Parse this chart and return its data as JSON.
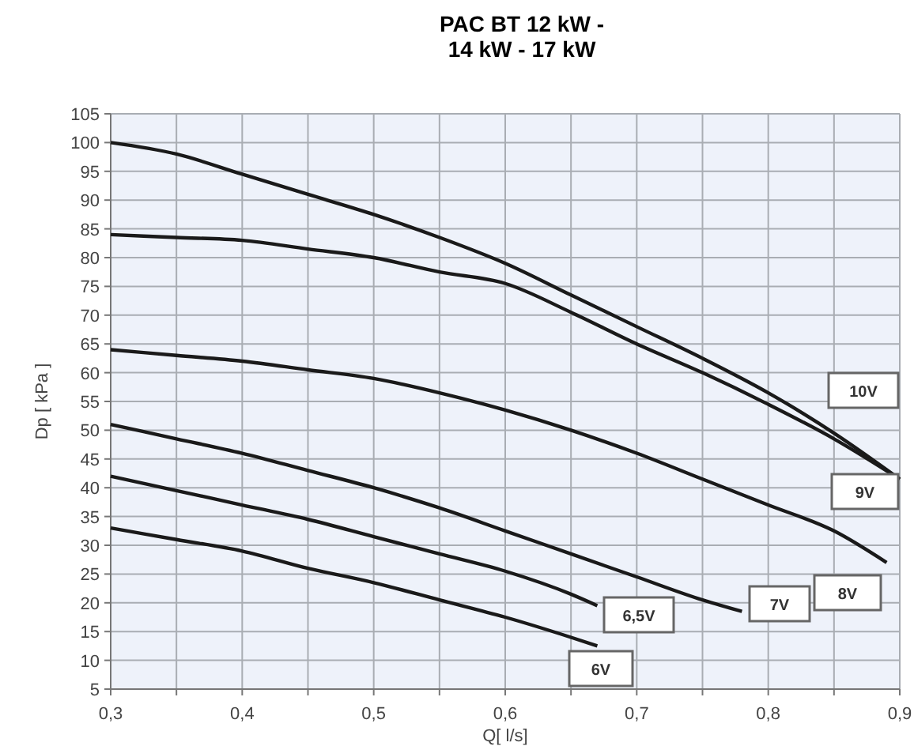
{
  "chart_data": {
    "type": "line",
    "title": "PAC BT 12 kW - 14 kW - 17 kW",
    "xlabel": "Q[ l/s]",
    "ylabel": "Dp [ kPa ]",
    "xlim": [
      0.3,
      0.9
    ],
    "xticks": [
      {
        "value": 0.3,
        "label": "0,3"
      },
      {
        "value": 0.35,
        "label": null
      },
      {
        "value": 0.4,
        "label": "0,4"
      },
      {
        "value": 0.45,
        "label": null
      },
      {
        "value": 0.5,
        "label": "0,5"
      },
      {
        "value": 0.55,
        "label": null
      },
      {
        "value": 0.6,
        "label": "0,6"
      },
      {
        "value": 0.65,
        "label": null
      },
      {
        "value": 0.7,
        "label": "0,7"
      },
      {
        "value": 0.75,
        "label": null
      },
      {
        "value": 0.8,
        "label": "0,8"
      },
      {
        "value": 0.85,
        "label": null
      },
      {
        "value": 0.9,
        "label": "0,9"
      }
    ],
    "ylim": [
      5,
      105
    ],
    "yticks": [
      5,
      10,
      15,
      20,
      25,
      30,
      35,
      40,
      45,
      50,
      55,
      60,
      65,
      70,
      75,
      80,
      85,
      90,
      95,
      100,
      105
    ],
    "grid": true,
    "marker": "none",
    "line_style": "solid",
    "series": [
      {
        "name": "10V",
        "color": "#1a1a1a",
        "x": [
          0.3,
          0.35,
          0.4,
          0.45,
          0.5,
          0.55,
          0.6,
          0.65,
          0.7,
          0.75,
          0.8,
          0.85,
          0.9
        ],
        "values": [
          100,
          98,
          94.5,
          91,
          87.5,
          83.5,
          79,
          73.5,
          68,
          62.5,
          56.5,
          49.5,
          41.5
        ]
      },
      {
        "name": "9V",
        "color": "#1a1a1a",
        "x": [
          0.3,
          0.35,
          0.4,
          0.45,
          0.5,
          0.55,
          0.6,
          0.65,
          0.7,
          0.75,
          0.8,
          0.85,
          0.9
        ],
        "values": [
          84,
          83.5,
          83,
          81.5,
          80,
          77.5,
          75.5,
          70.5,
          65,
          60,
          54.5,
          48.5,
          41.5
        ]
      },
      {
        "name": "8V",
        "color": "#1a1a1a",
        "x": [
          0.3,
          0.35,
          0.4,
          0.45,
          0.5,
          0.55,
          0.6,
          0.65,
          0.7,
          0.75,
          0.8,
          0.85,
          0.89
        ],
        "values": [
          64,
          63,
          62,
          60.5,
          59,
          56.5,
          53.5,
          50,
          46,
          41.5,
          37,
          32.5,
          27
        ]
      },
      {
        "name": "7V",
        "color": "#1a1a1a",
        "x": [
          0.3,
          0.35,
          0.4,
          0.45,
          0.5,
          0.55,
          0.6,
          0.65,
          0.7,
          0.75,
          0.78
        ],
        "values": [
          51,
          48.5,
          46,
          43,
          40,
          36.5,
          32.5,
          28.5,
          24.5,
          20.5,
          18.5
        ]
      },
      {
        "name": "6,5V",
        "color": "#1a1a1a",
        "x": [
          0.3,
          0.35,
          0.4,
          0.45,
          0.5,
          0.55,
          0.6,
          0.65,
          0.67
        ],
        "values": [
          42,
          39.5,
          37,
          34.5,
          31.5,
          28.5,
          25.5,
          21.5,
          19.5
        ]
      },
      {
        "name": "6V",
        "color": "#1a1a1a",
        "x": [
          0.3,
          0.35,
          0.4,
          0.45,
          0.5,
          0.55,
          0.6,
          0.65,
          0.67
        ],
        "values": [
          33,
          31,
          29,
          26,
          23.5,
          20.5,
          17.5,
          14,
          12.5
        ]
      }
    ]
  }
}
